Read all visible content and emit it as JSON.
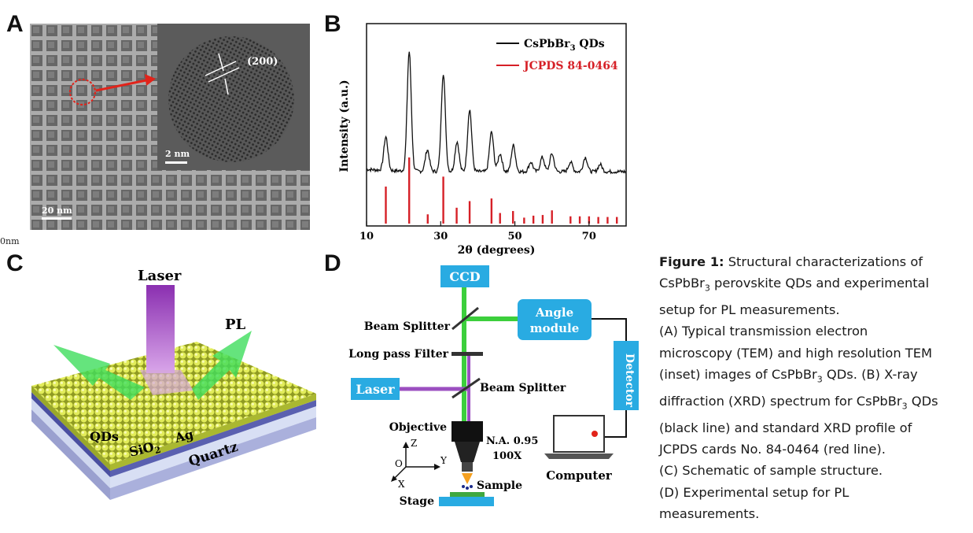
{
  "panels": {
    "a": "A",
    "b": "B",
    "c": "C",
    "d": "D"
  },
  "tem": {
    "scale_main": "20 nm",
    "scale_inset": "2 nm",
    "plane": "(200)",
    "edge_fragment": "0nm"
  },
  "chart_data": {
    "type": "line",
    "xlabel": "2θ (degrees)",
    "ylabel": "Intensity (a.u.)",
    "xlim": [
      10,
      80
    ],
    "x_ticks": [
      10,
      30,
      50,
      70
    ],
    "legend_position": "top-right",
    "series": [
      {
        "name": "CsPbBr3 QDs",
        "color": "#111111",
        "peaks": [
          [
            15.2,
            0.28
          ],
          [
            21.5,
            1.0
          ],
          [
            26.4,
            0.18
          ],
          [
            30.7,
            0.82
          ],
          [
            34.4,
            0.25
          ],
          [
            37.8,
            0.52
          ],
          [
            43.7,
            0.33
          ],
          [
            46.0,
            0.15
          ],
          [
            49.6,
            0.22
          ],
          [
            54.3,
            0.08
          ],
          [
            57.4,
            0.12
          ],
          [
            60.0,
            0.15
          ],
          [
            65.0,
            0.08
          ],
          [
            69.0,
            0.12
          ],
          [
            73.0,
            0.06
          ]
        ]
      },
      {
        "name": "JCPDS 84-0464",
        "color": "#d62027",
        "sticks": [
          [
            15.2,
            0.56
          ],
          [
            21.5,
            1.0
          ],
          [
            26.5,
            0.14
          ],
          [
            30.7,
            0.71
          ],
          [
            34.3,
            0.24
          ],
          [
            37.8,
            0.34
          ],
          [
            43.7,
            0.38
          ],
          [
            46.0,
            0.16
          ],
          [
            49.5,
            0.19
          ],
          [
            52.5,
            0.09
          ],
          [
            55.0,
            0.12
          ],
          [
            57.5,
            0.13
          ],
          [
            60.0,
            0.2
          ],
          [
            65.0,
            0.11
          ],
          [
            67.5,
            0.11
          ],
          [
            70.0,
            0.11
          ],
          [
            72.5,
            0.1
          ],
          [
            75.0,
            0.1
          ],
          [
            77.5,
            0.1
          ]
        ]
      }
    ]
  },
  "legend": {
    "qd": "CsPbBr",
    "qd_sub": "3",
    "qd_tail": " QDs",
    "jcpds": "JCPDS  84-0464"
  },
  "schematic": {
    "laser": "Laser",
    "pl": "PL",
    "qds": "QDs",
    "sio2": "SiO",
    "sio2_sub": "2",
    "ag": "Ag",
    "quartz": "Quartz"
  },
  "setup": {
    "ccd": "CCD",
    "angle1": "Angle",
    "angle2": "module",
    "detector": "Detector",
    "beam_splitter_1": "Beam Splitter",
    "long_pass": "Long pass Filter",
    "beam_splitter_2": "Beam Splitter",
    "laser": "Laser",
    "objective": "Objective",
    "na": "N.A. 0.95",
    "mag": "100X",
    "computer": "Computer",
    "sample": "Sample",
    "stage": "Stage",
    "axis_z": "Z",
    "axis_y": "Y",
    "axis_x": "X",
    "axis_o": "O"
  },
  "caption": {
    "label": "Figure 1:",
    "line1": "  Structural characterizations of",
    "line2a": "CsPbBr",
    "line2sub": "3",
    "line2b": " perovskite QDs and experimental",
    "line3": "setup for PL measurements.",
    "line4": "(A) Typical transmission electron",
    "line5": "microscopy (TEM) and high resolution TEM",
    "line6a": "(inset) images of CsPbBr",
    "line6sub": "3",
    "line6b": " QDs. (B) X-ray",
    "line7a": "diffraction (XRD) spectrum for CsPbBr",
    "line7sub": "3",
    "line7b": " QDs",
    "line8": "(black line) and standard XRD profile of",
    "line9": "JCPDS cards No. 84-0464 (red line).",
    "line10": "(C) Schematic of sample structure.",
    "line11": "(D) Experimental setup for PL",
    "line12": "measurements."
  }
}
